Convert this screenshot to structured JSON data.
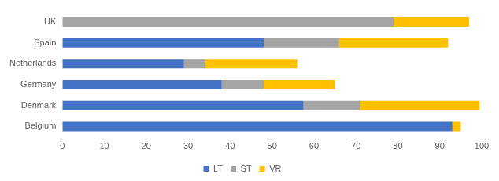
{
  "chart_data": {
    "type": "bar",
    "orientation": "horizontal",
    "stacked": true,
    "categories": [
      "UK",
      "Spain",
      "Netherlands",
      "Germany",
      "Denmark",
      "Belgium"
    ],
    "series": [
      {
        "name": "LT",
        "color": "#4472c4",
        "values": [
          0,
          48,
          29,
          38,
          57.5,
          93
        ]
      },
      {
        "name": "ST",
        "color": "#a5a5a5",
        "values": [
          79,
          18,
          5,
          10,
          13.5,
          0
        ]
      },
      {
        "name": "VR",
        "color": "#ffc000",
        "values": [
          18,
          26,
          22,
          17,
          28.5,
          2
        ]
      }
    ],
    "xlim": [
      0,
      100
    ],
    "xticks": [
      0,
      10,
      20,
      30,
      40,
      50,
      60,
      70,
      80,
      90,
      100
    ],
    "grid": false,
    "legend": "bottom"
  }
}
